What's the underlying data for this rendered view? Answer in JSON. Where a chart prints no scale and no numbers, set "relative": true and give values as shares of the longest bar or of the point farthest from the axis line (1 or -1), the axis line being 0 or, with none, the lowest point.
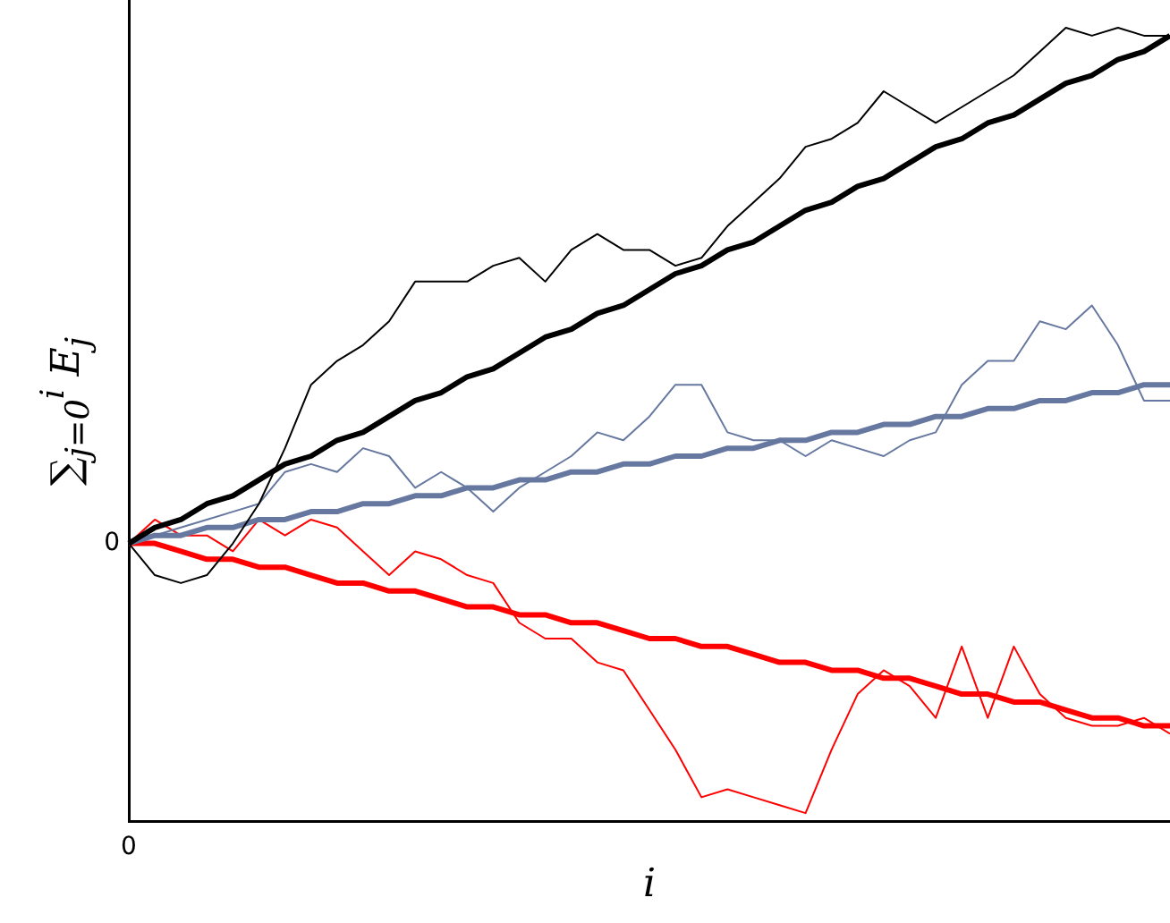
{
  "chart_data": {
    "type": "line",
    "relative": true,
    "xlabel": "i",
    "ylabel": "∑$_{j=0}$$^{i}$ E$_{j}$",
    "categories": [
      null,
      null,
      null,
      null,
      null,
      null,
      null,
      null,
      null,
      null,
      null,
      null,
      null,
      null,
      null,
      null,
      null,
      null,
      null,
      null,
      null,
      null,
      null,
      null,
      null,
      null,
      null,
      null,
      null,
      null,
      null,
      null,
      null,
      null,
      null,
      null,
      null,
      null,
      null,
      null,
      null
    ],
    "series": [
      {
        "color": "#000000",
        "values": [
          0.35,
          0.31,
          0.3,
          0.31,
          0.35,
          0.4,
          0.47,
          0.55,
          0.58,
          0.6,
          0.63,
          0.68,
          0.68,
          0.68,
          0.7,
          0.71,
          0.68,
          0.72,
          0.74,
          0.72,
          0.72,
          0.7,
          0.71,
          0.75,
          0.78,
          0.81,
          0.85,
          0.86,
          0.88,
          0.92,
          0.9,
          0.88,
          0.9,
          0.92,
          0.94,
          0.97,
          1,
          0.99,
          1,
          0.99,
          0.99
        ]
      },
      {
        "color": "#000000",
        "values": [
          0.35,
          0.37,
          0.38,
          0.4,
          0.41,
          0.43,
          0.45,
          0.46,
          0.48,
          0.49,
          0.51,
          0.53,
          0.54,
          0.56,
          0.57,
          0.59,
          0.61,
          0.62,
          0.64,
          0.65,
          0.67,
          0.69,
          0.7,
          0.72,
          0.73,
          0.75,
          0.77,
          0.78,
          0.8,
          0.81,
          0.83,
          0.85,
          0.86,
          0.88,
          0.89,
          0.91,
          0.93,
          0.94,
          0.96,
          0.97,
          0.99
        ]
      },
      {
        "color": "#6678a0",
        "values": [
          0.35,
          0.36,
          0.37,
          0.38,
          0.39,
          0.4,
          0.44,
          0.45,
          0.44,
          0.47,
          0.46,
          0.42,
          0.44,
          0.42,
          0.39,
          0.42,
          0.44,
          0.46,
          0.49,
          0.48,
          0.51,
          0.55,
          0.55,
          0.49,
          0.48,
          0.48,
          0.46,
          0.48,
          0.47,
          0.46,
          0.48,
          0.49,
          0.55,
          0.58,
          0.58,
          0.63,
          0.62,
          0.65,
          0.6,
          0.53,
          0.53
        ]
      },
      {
        "color": "#6678a0",
        "values": [
          0.35,
          0.36,
          0.36,
          0.37,
          0.37,
          0.38,
          0.38,
          0.39,
          0.39,
          0.4,
          0.4,
          0.41,
          0.41,
          0.42,
          0.42,
          0.43,
          0.43,
          0.44,
          0.44,
          0.45,
          0.45,
          0.46,
          0.46,
          0.47,
          0.47,
          0.48,
          0.48,
          0.49,
          0.49,
          0.5,
          0.5,
          0.51,
          0.51,
          0.52,
          0.52,
          0.53,
          0.53,
          0.54,
          0.54,
          0.55,
          0.55
        ]
      },
      {
        "color": "#ff0000",
        "values": [
          0.35,
          0.38,
          0.36,
          0.36,
          0.34,
          0.38,
          0.36,
          0.38,
          0.37,
          0.34,
          0.31,
          0.34,
          0.33,
          0.31,
          0.3,
          0.25,
          0.23,
          0.23,
          0.2,
          0.19,
          0.14,
          0.09,
          0.03,
          0.04,
          0.03,
          0.02,
          0.01,
          0.09,
          0.16,
          0.19,
          0.17,
          0.13,
          0.22,
          0.13,
          0.22,
          0.16,
          0.13,
          0.12,
          0.12,
          0.13,
          0.11
        ]
      },
      {
        "color": "#ff0000",
        "values": [
          0.35,
          0.35,
          0.34,
          0.33,
          0.33,
          0.32,
          0.32,
          0.31,
          0.3,
          0.3,
          0.29,
          0.29,
          0.28,
          0.27,
          0.27,
          0.26,
          0.26,
          0.25,
          0.25,
          0.24,
          0.23,
          0.23,
          0.22,
          0.22,
          0.21,
          0.2,
          0.2,
          0.19,
          0.19,
          0.18,
          0.18,
          0.17,
          0.16,
          0.16,
          0.15,
          0.15,
          0.14,
          0.13,
          0.13,
          0.12,
          0.12
        ]
      }
    ],
    "annotations": [
      "0",
      "0"
    ],
    "legend": false,
    "grid": false
  }
}
